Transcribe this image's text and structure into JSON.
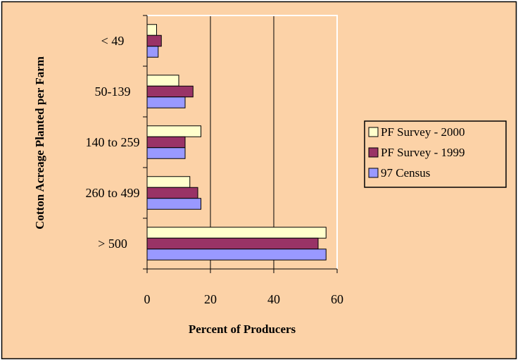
{
  "colors": {
    "chart_area": "#FCD2A7",
    "plot_area": "#FCD2A7",
    "border": "#000000",
    "gridline": "#000000",
    "series": [
      "#FFFFCC",
      "#993366",
      "#9999FF"
    ]
  },
  "chart_data": {
    "type": "bar",
    "orientation": "horizontal",
    "categories": [
      "< 49",
      "50-139",
      "140 to 259",
      "260 to 499",
      "> 500"
    ],
    "series": [
      {
        "name": "PF Survey - 2000",
        "values": [
          3,
          10,
          17,
          13.5,
          56.5
        ]
      },
      {
        "name": "PF Survey - 1999",
        "values": [
          4.5,
          14.5,
          12,
          16,
          54
        ]
      },
      {
        "name": "97 Census",
        "values": [
          3.5,
          12,
          12,
          17,
          56.5
        ]
      }
    ],
    "xlabel": "Percent of Producers",
    "ylabel": "Cotton Acreage Planted per Farm",
    "xlim": [
      0,
      60
    ],
    "xticks": [
      0,
      20,
      40,
      60
    ],
    "grid": "vertical major gridlines",
    "legend_position": "right"
  }
}
